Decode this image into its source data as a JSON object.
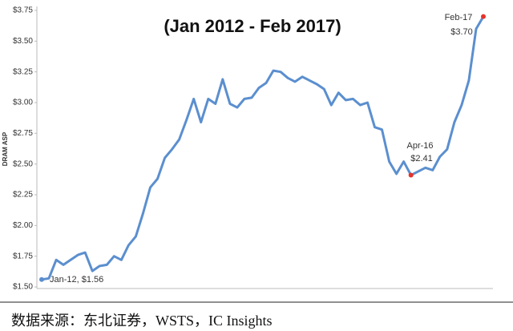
{
  "chart_data": {
    "type": "line",
    "title": "(Jan 2012 - Feb 2017)",
    "ylabel": "DRAM ASP",
    "source": "数据来源：东北证券，WSTS，IC Insights",
    "color": "#5b8fcf",
    "highlight_color": "#e8322a",
    "values": [
      1.56,
      1.57,
      1.72,
      1.68,
      1.72,
      1.76,
      1.78,
      1.63,
      1.67,
      1.68,
      1.75,
      1.72,
      1.84,
      1.91,
      2.1,
      2.31,
      2.38,
      2.55,
      2.62,
      2.7,
      2.86,
      3.03,
      2.84,
      3.03,
      2.99,
      3.19,
      2.99,
      2.96,
      3.03,
      3.04,
      3.12,
      3.16,
      3.26,
      3.25,
      3.2,
      3.17,
      3.21,
      3.18,
      3.15,
      3.11,
      2.98,
      3.08,
      3.02,
      3.03,
      2.98,
      3.0,
      2.8,
      2.78,
      2.52,
      2.42,
      2.52,
      2.41,
      2.44,
      2.47,
      2.45,
      2.56,
      2.62,
      2.84,
      2.98,
      3.18,
      3.6,
      3.7
    ],
    "ylim": [
      1.5,
      3.75
    ],
    "yticks": [
      {
        "value": 1.5,
        "label": "$1.50"
      },
      {
        "value": 1.75,
        "label": "$1.75"
      },
      {
        "value": 2.0,
        "label": "$2.00"
      },
      {
        "value": 2.25,
        "label": "$2.25"
      },
      {
        "value": 2.5,
        "label": "$2.50"
      },
      {
        "value": 2.75,
        "label": "$2.75"
      },
      {
        "value": 3.0,
        "label": "$3.00"
      },
      {
        "value": 3.25,
        "label": "$3.25"
      },
      {
        "value": 3.5,
        "label": "$3.50"
      },
      {
        "value": 3.75,
        "label": "$3.75"
      }
    ],
    "annotations": [
      "Jan-12, $1.56",
      "Apr-16",
      "$2.41",
      "Feb-17",
      "$3.70"
    ]
  }
}
